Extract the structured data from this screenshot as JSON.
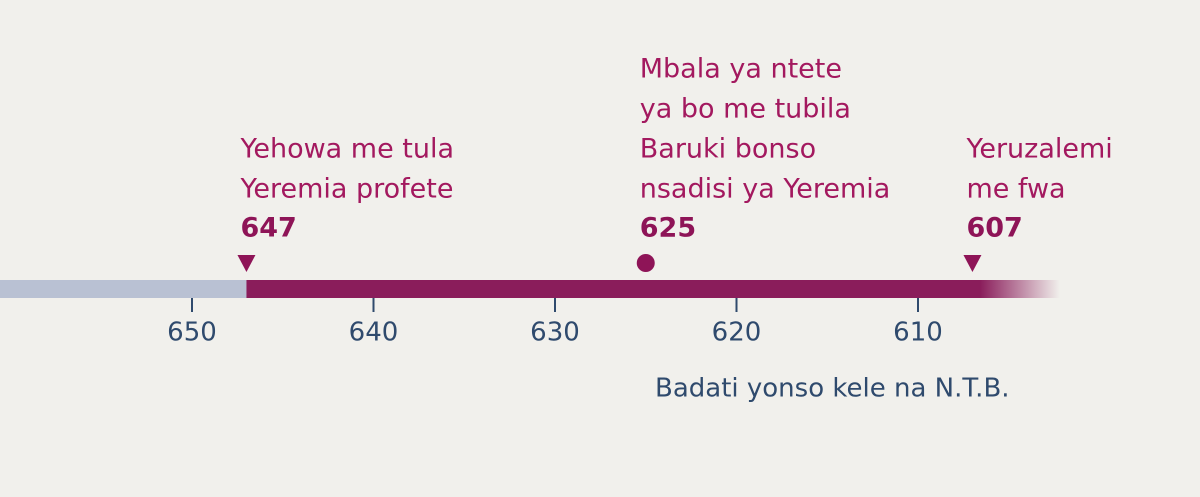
{
  "timeline": {
    "events": [
      {
        "lines": [
          "Yehowa me tula",
          "Yeremia profete"
        ],
        "year": 647,
        "marker": "triangle"
      },
      {
        "lines": [
          "Mbala ya ntete",
          "ya bo me tubila",
          "Baruki bonso",
          "nsadisi ya Yeremia"
        ],
        "year": 625,
        "marker": "circle"
      },
      {
        "lines": [
          "Yeruzalemi",
          "me fwa"
        ],
        "year": 607,
        "marker": "triangle"
      }
    ],
    "ticks": [
      650,
      640,
      630,
      620,
      610
    ],
    "note": "Badati yonso kele na N.T.B."
  }
}
